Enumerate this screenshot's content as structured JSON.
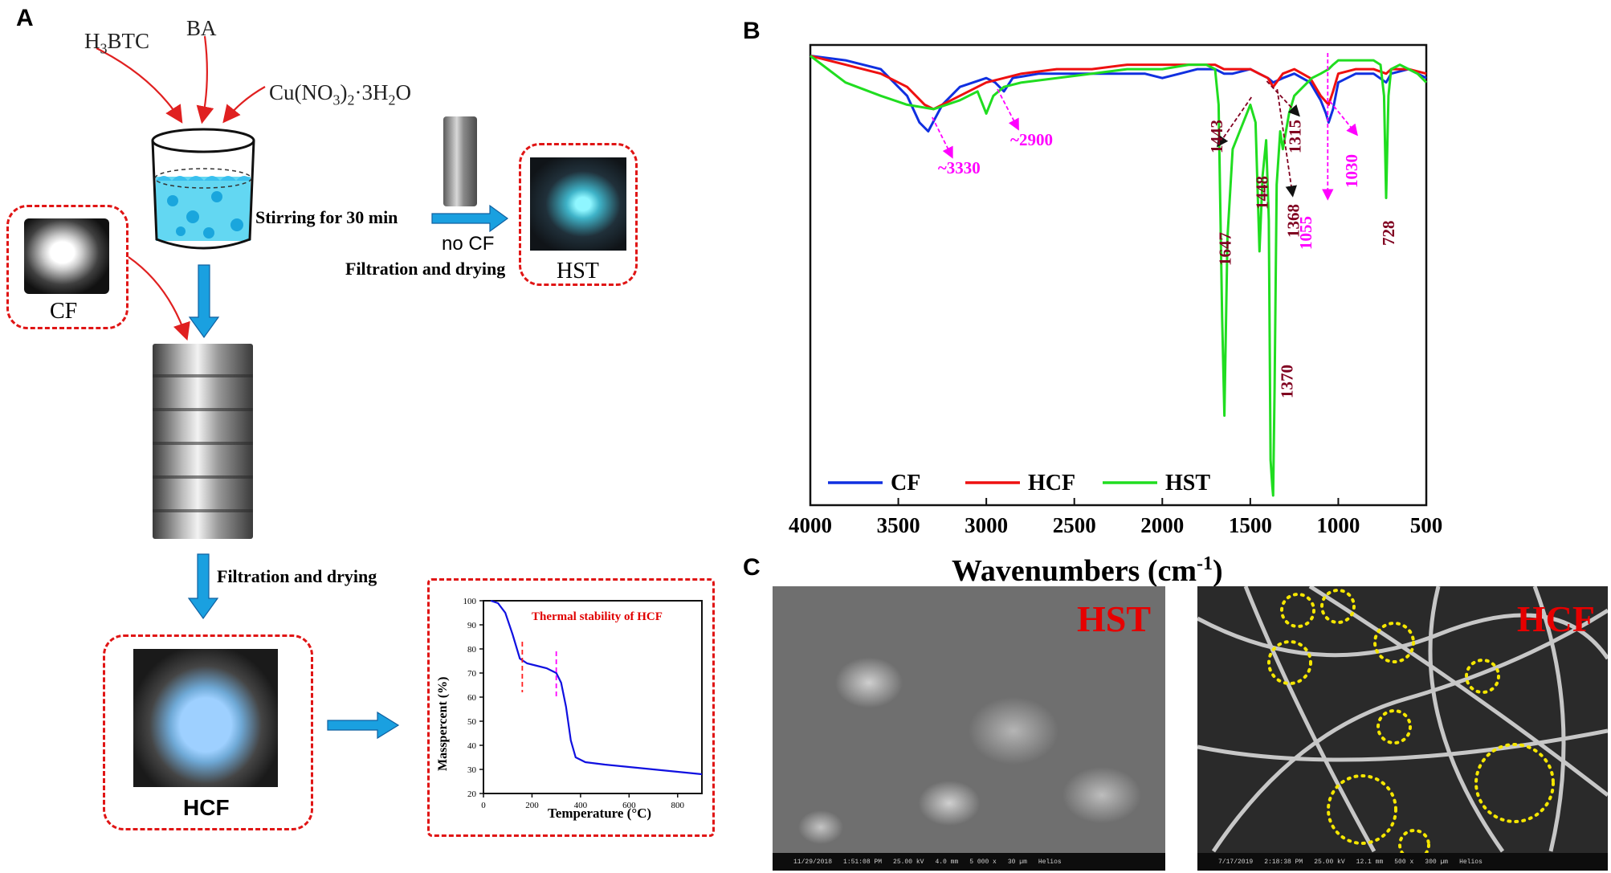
{
  "panels": {
    "a": "A",
    "b": "B",
    "c": "C"
  },
  "synthesis": {
    "reagents": [
      "H3BTC",
      "BA",
      "Cu(NO3)2·3H2O"
    ],
    "stirring": "Stirring for 30 min",
    "no_cf": "no CF",
    "filtration_top": "Filtration and drying",
    "filtration_bottom": "Filtration and drying",
    "samples": {
      "cf": "CF",
      "hst": "HST",
      "hcf": "HCF"
    }
  },
  "tga_inset": {
    "title": "Thermal stability of HCF",
    "xlabel": "Temperature (°C)",
    "ylabel": "Masspercent (%)",
    "x_ticks": [
      0,
      200,
      400,
      600,
      800
    ],
    "y_ticks": [
      20,
      30,
      40,
      50,
      60,
      70,
      80,
      90,
      100
    ],
    "xlim": [
      0,
      900
    ],
    "ylim": [
      20,
      100
    ],
    "markers_x": [
      160,
      300
    ],
    "colors": {
      "curve": "#1010e0",
      "marker1": "#ff2020",
      "marker2": "#ff00ff",
      "title": "#e00000"
    }
  },
  "chart_data": {
    "type": "line",
    "xlabel": "Wavenumbers (cm-1)",
    "xlabel_main": "Wavenumbers (cm",
    "xlabel_sup": "-1",
    "xlabel_close": ")",
    "x_ticks": [
      4000,
      3500,
      3000,
      2500,
      2000,
      1500,
      1000,
      500
    ],
    "xlim": [
      4000,
      500
    ],
    "x_reversed": true,
    "ylim": [
      0,
      100
    ],
    "y_ticks_shown": false,
    "legend_placement": "bottom-left",
    "series": [
      {
        "name": "CF",
        "color": "#1030e0",
        "x": [
          4000,
          3800,
          3600,
          3450,
          3380,
          3330,
          3250,
          3150,
          3000,
          2950,
          2900,
          2850,
          2700,
          2500,
          2300,
          2100,
          2000,
          1900,
          1800,
          1700,
          1650,
          1600,
          1500,
          1450,
          1400,
          1370,
          1315,
          1250,
          1160,
          1100,
          1070,
          1055,
          1030,
          1000,
          900,
          800,
          728,
          700,
          600,
          500
        ],
        "y": [
          99,
          98,
          96,
          90,
          84,
          82,
          88,
          92,
          94,
          93,
          91,
          94,
          95,
          95,
          95,
          95,
          94,
          95,
          96,
          96,
          95,
          95,
          96,
          95,
          94,
          93,
          94,
          95,
          93,
          89,
          86,
          84,
          87,
          93,
          95,
          95,
          93,
          95,
          96,
          94
        ]
      },
      {
        "name": "HCF",
        "color": "#ee1010",
        "x": [
          4000,
          3800,
          3600,
          3450,
          3350,
          3300,
          3200,
          3000,
          2900,
          2800,
          2600,
          2400,
          2200,
          2000,
          1800,
          1700,
          1650,
          1600,
          1500,
          1450,
          1400,
          1370,
          1315,
          1250,
          1160,
          1100,
          1055,
          1030,
          1000,
          900,
          800,
          728,
          700,
          600,
          500
        ],
        "y": [
          99,
          97,
          95,
          92,
          88,
          87,
          89,
          93,
          94,
          95,
          96,
          96,
          97,
          97,
          97,
          97,
          96,
          96,
          96,
          95,
          94,
          92,
          95,
          96,
          94,
          90,
          88,
          91,
          95,
          96,
          96,
          95,
          96,
          96,
          95
        ]
      },
      {
        "name": "HST",
        "color": "#20dd20",
        "x": [
          4000,
          3800,
          3600,
          3450,
          3300,
          3150,
          3050,
          3000,
          2960,
          2900,
          2800,
          2600,
          2400,
          2200,
          2000,
          1850,
          1750,
          1700,
          1680,
          1660,
          1647,
          1630,
          1600,
          1560,
          1520,
          1500,
          1470,
          1448,
          1430,
          1410,
          1395,
          1385,
          1375,
          1370,
          1362,
          1350,
          1330,
          1315,
          1280,
          1250,
          1200,
          1150,
          1100,
          1055,
          1030,
          1000,
          950,
          900,
          800,
          760,
          740,
          728,
          715,
          700,
          650,
          600,
          550,
          500
        ],
        "y": [
          99,
          93,
          90,
          88,
          87,
          89,
          91,
          86,
          90,
          92,
          93,
          94,
          95,
          96,
          96,
          97,
          97,
          96,
          88,
          40,
          18,
          58,
          78,
          82,
          86,
          88,
          84,
          55,
          72,
          80,
          62,
          8,
          2,
          0,
          24,
          70,
          82,
          78,
          86,
          90,
          92,
          94,
          95,
          96,
          97,
          98,
          98,
          98,
          98,
          97,
          90,
          67,
          90,
          96,
          97,
          96,
          95,
          93
        ]
      }
    ],
    "annotations": [
      {
        "text": "~3330",
        "color": "#ff00ff"
      },
      {
        "text": "~2900",
        "color": "#ff00ff"
      },
      {
        "text": "1443",
        "color": "#800020"
      },
      {
        "text": "1647",
        "color": "#800020"
      },
      {
        "text": "1448",
        "color": "#800020"
      },
      {
        "text": "1370",
        "color": "#800020"
      },
      {
        "text": "1368",
        "color": "#800020"
      },
      {
        "text": "1315",
        "color": "#800020"
      },
      {
        "text": "1055",
        "color": "#ff00ff"
      },
      {
        "text": "1030",
        "color": "#ff00ff"
      },
      {
        "text": "728",
        "color": "#800020"
      }
    ]
  },
  "sem": {
    "hst_label": "HST",
    "hcf_label": "HCF",
    "hst_bar": [
      "11/29/2018",
      "1:51:08 PM",
      "25.00 kV",
      "4.0 mm",
      "5 000 x",
      "30 µm",
      "Helios"
    ],
    "hcf_bar": [
      "7/17/2019",
      "2:18:38 PM",
      "25.00 kV",
      "12.1 mm",
      "500 x",
      "300 µm",
      "Helios"
    ]
  }
}
